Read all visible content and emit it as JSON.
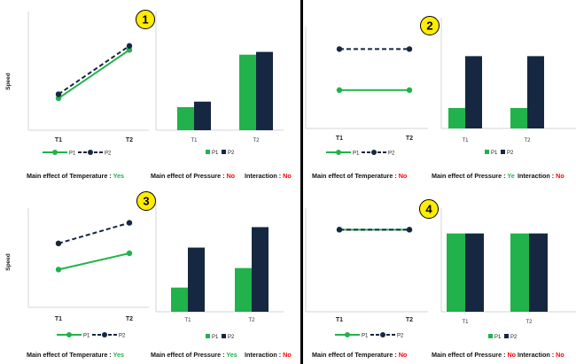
{
  "colors": {
    "p1": "#21b24b",
    "p2": "#152741",
    "yes": "#21b24b",
    "no": "#ff0000",
    "badge": "#ffec00",
    "axis": "#d6d6d6"
  },
  "legend": {
    "p1": "P1",
    "p2": "P2"
  },
  "y_axis_label": "Speed",
  "panels": [
    {
      "number": "1",
      "line_chart": {
        "categories": [
          "T1",
          "T2"
        ],
        "ylim": [
          0,
          100
        ],
        "series": [
          {
            "name": "P1",
            "values": [
              22,
              82
            ]
          },
          {
            "name": "P2",
            "values": [
              27,
              87
            ]
          }
        ]
      },
      "bar_chart": {
        "categories": [
          "T1",
          "T2"
        ],
        "ylim": [
          0,
          100
        ],
        "series": [
          {
            "name": "P1",
            "values": [
              25,
              82
            ]
          },
          {
            "name": "P2",
            "values": [
              31,
              85
            ]
          }
        ]
      },
      "captions": [
        {
          "label": "Main effect of Temperature : ",
          "value": "Yes",
          "status": "yes"
        },
        {
          "label": "Main effect of Pressure : ",
          "value": "No",
          "status": "no"
        },
        {
          "label": "Interaction : ",
          "value": "No",
          "status": "no"
        }
      ]
    },
    {
      "number": "2",
      "line_chart": {
        "categories": [
          "T1",
          "T2"
        ],
        "ylim": [
          0,
          100
        ],
        "series": [
          {
            "name": "P1",
            "values": [
              24,
              24
            ]
          },
          {
            "name": "P2",
            "values": [
              85,
              85
            ]
          }
        ]
      },
      "bar_chart": {
        "categories": [
          "T1",
          "T2"
        ],
        "ylim": [
          0,
          100
        ],
        "series": [
          {
            "name": "P1",
            "values": [
              24,
              24
            ]
          },
          {
            "name": "P2",
            "values": [
              85,
              85
            ]
          }
        ]
      },
      "captions": [
        {
          "label": "Main effect of Temperature : ",
          "value": "No",
          "status": "no"
        },
        {
          "label": "Main effect of Pressure : ",
          "value": "Ye",
          "status": "yes"
        },
        {
          "label": "Interaction : ",
          "value": "No",
          "status": "no"
        }
      ]
    },
    {
      "number": "3",
      "line_chart": {
        "categories": [
          "T1",
          "T2"
        ],
        "ylim": [
          0,
          100
        ],
        "series": [
          {
            "name": "P1",
            "values": [
              22,
              45
            ]
          },
          {
            "name": "P2",
            "values": [
              59,
              88
            ]
          }
        ]
      },
      "bar_chart": {
        "categories": [
          "T1",
          "T2"
        ],
        "ylim": [
          0,
          100
        ],
        "series": [
          {
            "name": "P1",
            "values": [
              26,
              47
            ]
          },
          {
            "name": "P2",
            "values": [
              69,
              91
            ]
          }
        ]
      },
      "captions": [
        {
          "label": "Main effect of Temperature : ",
          "value": "Yes",
          "status": "yes"
        },
        {
          "label": "Main effect of Pressure : ",
          "value": "Yes",
          "status": "yes"
        },
        {
          "label": "Interaction : ",
          "value": "No",
          "status": "no"
        }
      ]
    },
    {
      "number": "4",
      "line_chart": {
        "categories": [
          "T1",
          "T2"
        ],
        "ylim": [
          0,
          100
        ],
        "series": [
          {
            "name": "P1",
            "values": [
              85,
              85
            ]
          },
          {
            "name": "P2",
            "values": [
              85,
              85
            ]
          }
        ]
      },
      "bar_chart": {
        "categories": [
          "T1",
          "T2"
        ],
        "ylim": [
          0,
          100
        ],
        "series": [
          {
            "name": "P1",
            "values": [
              85,
              85
            ]
          },
          {
            "name": "P2",
            "values": [
              85,
              85
            ]
          }
        ]
      },
      "captions": [
        {
          "label": "Main effect of Temperature : ",
          "value": "No",
          "status": "no"
        },
        {
          "label": "Main effect of Pressure : ",
          "value": "No",
          "status": "no"
        },
        {
          "label": "Interaction : ",
          "value": "No",
          "status": "no"
        }
      ]
    }
  ],
  "chart_data": [
    {
      "type": "line",
      "panel": "1",
      "categories": [
        "T1",
        "T2"
      ],
      "ylabel": "Speed",
      "ylim": [
        0,
        100
      ],
      "series": [
        {
          "name": "P1",
          "values": [
            22,
            82
          ]
        },
        {
          "name": "P2",
          "values": [
            27,
            87
          ]
        }
      ]
    },
    {
      "type": "bar",
      "panel": "1",
      "categories": [
        "T1",
        "T2"
      ],
      "ylim": [
        0,
        100
      ],
      "series": [
        {
          "name": "P1",
          "values": [
            25,
            82
          ]
        },
        {
          "name": "P2",
          "values": [
            31,
            85
          ]
        }
      ]
    },
    {
      "type": "line",
      "panel": "2",
      "categories": [
        "T1",
        "T2"
      ],
      "ylim": [
        0,
        100
      ],
      "series": [
        {
          "name": "P1",
          "values": [
            24,
            24
          ]
        },
        {
          "name": "P2",
          "values": [
            85,
            85
          ]
        }
      ]
    },
    {
      "type": "bar",
      "panel": "2",
      "categories": [
        "T1",
        "T2"
      ],
      "ylim": [
        0,
        100
      ],
      "series": [
        {
          "name": "P1",
          "values": [
            24,
            24
          ]
        },
        {
          "name": "P2",
          "values": [
            85,
            85
          ]
        }
      ]
    },
    {
      "type": "line",
      "panel": "3",
      "categories": [
        "T1",
        "T2"
      ],
      "ylabel": "Speed",
      "ylim": [
        0,
        100
      ],
      "series": [
        {
          "name": "P1",
          "values": [
            22,
            45
          ]
        },
        {
          "name": "P2",
          "values": [
            59,
            88
          ]
        }
      ]
    },
    {
      "type": "bar",
      "panel": "3",
      "categories": [
        "T1",
        "T2"
      ],
      "ylim": [
        0,
        100
      ],
      "series": [
        {
          "name": "P1",
          "values": [
            26,
            47
          ]
        },
        {
          "name": "P2",
          "values": [
            69,
            91
          ]
        }
      ]
    },
    {
      "type": "line",
      "panel": "4",
      "categories": [
        "T1",
        "T2"
      ],
      "ylim": [
        0,
        100
      ],
      "series": [
        {
          "name": "P1",
          "values": [
            85,
            85
          ]
        },
        {
          "name": "P2",
          "values": [
            85,
            85
          ]
        }
      ]
    },
    {
      "type": "bar",
      "panel": "4",
      "categories": [
        "T1",
        "T2"
      ],
      "ylim": [
        0,
        100
      ],
      "series": [
        {
          "name": "P1",
          "values": [
            85,
            85
          ]
        },
        {
          "name": "P2",
          "values": [
            85,
            85
          ]
        }
      ]
    }
  ]
}
